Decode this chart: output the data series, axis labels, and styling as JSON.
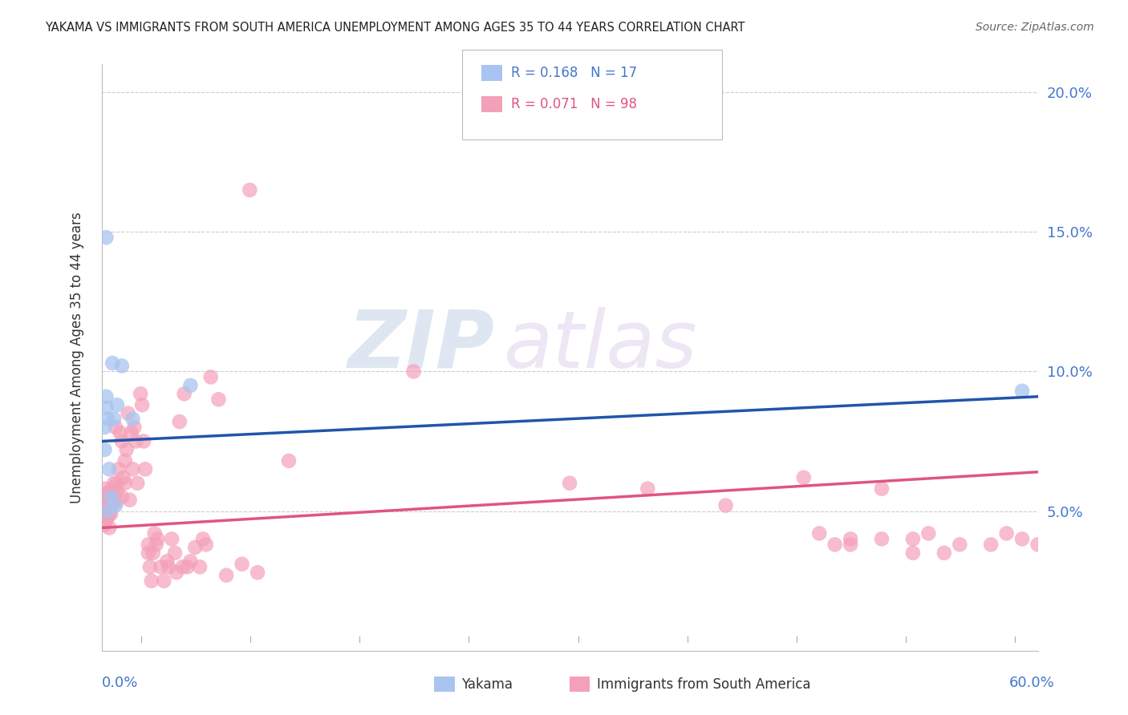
{
  "title": "YAKAMA VS IMMIGRANTS FROM SOUTH AMERICA UNEMPLOYMENT AMONG AGES 35 TO 44 YEARS CORRELATION CHART",
  "source": "Source: ZipAtlas.com",
  "ylabel": "Unemployment Among Ages 35 to 44 years",
  "xlim": [
    0,
    0.6
  ],
  "ylim": [
    0,
    0.21
  ],
  "yticks": [
    0.05,
    0.1,
    0.15,
    0.2
  ],
  "ytick_labels": [
    "5.0%",
    "10.0%",
    "15.0%",
    "20.0%"
  ],
  "blue_color": "#a8c4f0",
  "pink_color": "#f4a0b8",
  "blue_line_color": "#2255aa",
  "pink_line_color": "#e05580",
  "watermark_zip": "ZIP",
  "watermark_atlas": "atlas",
  "yakama_x": [
    0.002,
    0.002,
    0.003,
    0.003,
    0.003,
    0.004,
    0.004,
    0.005,
    0.006,
    0.007,
    0.008,
    0.009,
    0.01,
    0.013,
    0.02,
    0.057,
    0.59
  ],
  "yakama_y": [
    0.072,
    0.08,
    0.087,
    0.091,
    0.148,
    0.05,
    0.083,
    0.065,
    0.055,
    0.103,
    0.083,
    0.052,
    0.088,
    0.102,
    0.083,
    0.095,
    0.093
  ],
  "sa_x": [
    0.001,
    0.001,
    0.002,
    0.002,
    0.002,
    0.002,
    0.003,
    0.003,
    0.003,
    0.003,
    0.004,
    0.004,
    0.004,
    0.005,
    0.005,
    0.005,
    0.005,
    0.006,
    0.006,
    0.006,
    0.007,
    0.007,
    0.008,
    0.008,
    0.009,
    0.009,
    0.01,
    0.01,
    0.011,
    0.012,
    0.013,
    0.013,
    0.014,
    0.015,
    0.015,
    0.016,
    0.017,
    0.018,
    0.019,
    0.02,
    0.021,
    0.022,
    0.023,
    0.025,
    0.026,
    0.027,
    0.028,
    0.03,
    0.03,
    0.031,
    0.032,
    0.033,
    0.034,
    0.035,
    0.036,
    0.038,
    0.04,
    0.042,
    0.043,
    0.045,
    0.047,
    0.048,
    0.05,
    0.052,
    0.053,
    0.055,
    0.057,
    0.06,
    0.063,
    0.065,
    0.067,
    0.07,
    0.075,
    0.08,
    0.09,
    0.095,
    0.1,
    0.12,
    0.2,
    0.3,
    0.35,
    0.4,
    0.45,
    0.47,
    0.48,
    0.5,
    0.52,
    0.54,
    0.55,
    0.57,
    0.58,
    0.59,
    0.6,
    0.52,
    0.46,
    0.48,
    0.5,
    0.53
  ],
  "sa_y": [
    0.048,
    0.055,
    0.045,
    0.05,
    0.052,
    0.058,
    0.047,
    0.05,
    0.053,
    0.056,
    0.048,
    0.051,
    0.055,
    0.044,
    0.049,
    0.052,
    0.057,
    0.049,
    0.052,
    0.055,
    0.053,
    0.058,
    0.055,
    0.06,
    0.053,
    0.08,
    0.057,
    0.06,
    0.065,
    0.078,
    0.055,
    0.075,
    0.062,
    0.068,
    0.06,
    0.072,
    0.085,
    0.054,
    0.078,
    0.065,
    0.08,
    0.075,
    0.06,
    0.092,
    0.088,
    0.075,
    0.065,
    0.035,
    0.038,
    0.03,
    0.025,
    0.035,
    0.042,
    0.038,
    0.04,
    0.03,
    0.025,
    0.032,
    0.03,
    0.04,
    0.035,
    0.028,
    0.082,
    0.03,
    0.092,
    0.03,
    0.032,
    0.037,
    0.03,
    0.04,
    0.038,
    0.098,
    0.09,
    0.027,
    0.031,
    0.165,
    0.028,
    0.068,
    0.1,
    0.06,
    0.058,
    0.052,
    0.062,
    0.038,
    0.04,
    0.058,
    0.035,
    0.035,
    0.038,
    0.038,
    0.042,
    0.04,
    0.038,
    0.04,
    0.042,
    0.038,
    0.04,
    0.042
  ],
  "blue_line_x0": 0.0,
  "blue_line_y0": 0.075,
  "blue_line_x1": 0.6,
  "blue_line_y1": 0.091,
  "pink_line_x0": 0.0,
  "pink_line_y0": 0.044,
  "pink_line_x1": 0.6,
  "pink_line_y1": 0.064
}
